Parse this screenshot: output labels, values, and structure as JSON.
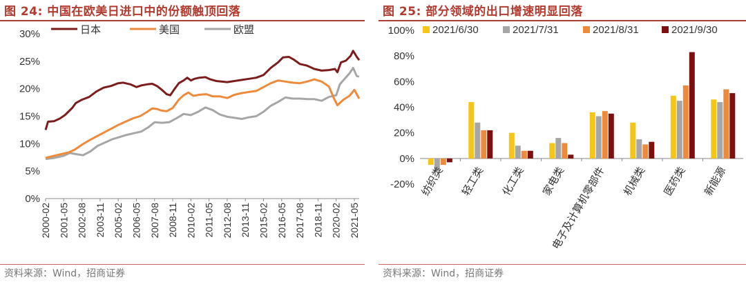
{
  "left": {
    "title": "图 24:  中国在欧美日进口中的份额触顶回落",
    "source": "资料来源：Wind，招商证券"
  },
  "right": {
    "title": "图 25:  部分领域的出口增速明显回落",
    "source": "资料来源：Wind，招商证券"
  },
  "colors": {
    "title_red": "#b23a2e",
    "japan": "#7b1d1d",
    "usa": "#ee8a3c",
    "eu": "#a6a6a6",
    "bar_jun": "#f5c518",
    "bar_jul": "#a6a6a6",
    "bar_aug": "#ee8a3c",
    "bar_sep": "#7b1010"
  },
  "chart_data": [
    {
      "type": "line",
      "title": "",
      "xlabel": "",
      "ylabel": "",
      "ylim": [
        0,
        30
      ],
      "y_ticks": [
        "0%",
        "5%",
        "10%",
        "15%",
        "20%",
        "25%",
        "30%"
      ],
      "x_ticks": [
        "2000-02",
        "2001-05",
        "2002-08",
        "2003-11",
        "2005-02",
        "2006-05",
        "2007-08",
        "2008-11",
        "2010-02",
        "2011-05",
        "2012-08",
        "2013-11",
        "2015-02",
        "2016-05",
        "2017-08",
        "2018-11",
        "2020-02",
        "2021-05"
      ],
      "x_start": "2000-02",
      "x_end": "2021-09",
      "legend_position": "top-left",
      "grid": false,
      "series": [
        {
          "name": "日本",
          "color_key": "japan",
          "points": [
            [
              "2000-02",
              12.5
            ],
            [
              "2000-04",
              14.0
            ],
            [
              "2000-09",
              14.1
            ],
            [
              "2001-02",
              14.6
            ],
            [
              "2001-06",
              15.2
            ],
            [
              "2001-12",
              16.5
            ],
            [
              "2002-03",
              17.4
            ],
            [
              "2002-08",
              18.0
            ],
            [
              "2003-02",
              18.5
            ],
            [
              "2003-08",
              19.5
            ],
            [
              "2004-02",
              20.2
            ],
            [
              "2004-08",
              20.5
            ],
            [
              "2005-02",
              21.0
            ],
            [
              "2005-06",
              21.1
            ],
            [
              "2005-12",
              20.8
            ],
            [
              "2006-05",
              20.3
            ],
            [
              "2006-09",
              20.6
            ],
            [
              "2007-02",
              20.8
            ],
            [
              "2007-06",
              20.9
            ],
            [
              "2007-10",
              20.5
            ],
            [
              "2008-02",
              19.8
            ],
            [
              "2008-06",
              19.0
            ],
            [
              "2008-09",
              18.8
            ],
            [
              "2008-12",
              19.8
            ],
            [
              "2009-04",
              21.0
            ],
            [
              "2009-08",
              21.5
            ],
            [
              "2009-11",
              22.0
            ],
            [
              "2010-02",
              21.5
            ],
            [
              "2010-05",
              21.8
            ],
            [
              "2010-09",
              22.0
            ],
            [
              "2011-02",
              22.1
            ],
            [
              "2011-06",
              21.7
            ],
            [
              "2011-11",
              21.4
            ],
            [
              "2012-03",
              21.3
            ],
            [
              "2012-08",
              21.2
            ],
            [
              "2013-02",
              21.4
            ],
            [
              "2013-08",
              21.6
            ],
            [
              "2014-02",
              21.8
            ],
            [
              "2014-08",
              22.0
            ],
            [
              "2015-02",
              22.5
            ],
            [
              "2015-08",
              23.8
            ],
            [
              "2016-02",
              24.8
            ],
            [
              "2016-06",
              25.7
            ],
            [
              "2016-11",
              25.8
            ],
            [
              "2017-03",
              25.3
            ],
            [
              "2017-08",
              24.5
            ],
            [
              "2018-02",
              24.2
            ],
            [
              "2018-08",
              23.6
            ],
            [
              "2019-02",
              23.3
            ],
            [
              "2019-08",
              23.4
            ],
            [
              "2020-01",
              23.6
            ],
            [
              "2020-03",
              23.0
            ],
            [
              "2020-06",
              24.8
            ],
            [
              "2020-10",
              25.1
            ],
            [
              "2021-02",
              26.0
            ],
            [
              "2021-04",
              26.9
            ],
            [
              "2021-07",
              25.8
            ],
            [
              "2021-09",
              25.2
            ]
          ]
        },
        {
          "name": "美国",
          "color_key": "usa",
          "points": [
            [
              "2000-02",
              7.4
            ],
            [
              "2000-09",
              7.8
            ],
            [
              "2001-03",
              8.1
            ],
            [
              "2001-09",
              8.4
            ],
            [
              "2002-02",
              8.9
            ],
            [
              "2002-08",
              9.8
            ],
            [
              "2003-02",
              10.6
            ],
            [
              "2003-08",
              11.3
            ],
            [
              "2004-02",
              12.0
            ],
            [
              "2004-08",
              12.7
            ],
            [
              "2005-02",
              13.4
            ],
            [
              "2005-08",
              14.0
            ],
            [
              "2006-02",
              14.6
            ],
            [
              "2006-08",
              15.0
            ],
            [
              "2007-02",
              15.8
            ],
            [
              "2007-06",
              16.4
            ],
            [
              "2007-10",
              16.3
            ],
            [
              "2008-02",
              16.0
            ],
            [
              "2008-06",
              15.9
            ],
            [
              "2008-11",
              16.5
            ],
            [
              "2009-04",
              18.0
            ],
            [
              "2009-08",
              18.8
            ],
            [
              "2009-12",
              19.3
            ],
            [
              "2010-04",
              18.7
            ],
            [
              "2010-09",
              18.9
            ],
            [
              "2011-03",
              19.0
            ],
            [
              "2011-08",
              18.6
            ],
            [
              "2012-02",
              18.6
            ],
            [
              "2012-08",
              18.3
            ],
            [
              "2013-02",
              18.9
            ],
            [
              "2013-08",
              19.2
            ],
            [
              "2014-02",
              19.4
            ],
            [
              "2014-08",
              19.6
            ],
            [
              "2015-02",
              20.3
            ],
            [
              "2015-08",
              21.0
            ],
            [
              "2016-02",
              21.5
            ],
            [
              "2016-08",
              21.3
            ],
            [
              "2017-02",
              21.1
            ],
            [
              "2017-08",
              21.0
            ],
            [
              "2018-02",
              21.3
            ],
            [
              "2018-08",
              21.7
            ],
            [
              "2019-02",
              21.3
            ],
            [
              "2019-08",
              20.4
            ],
            [
              "2019-12",
              18.3
            ],
            [
              "2020-03",
              17.0
            ],
            [
              "2020-08",
              18.0
            ],
            [
              "2021-01",
              18.7
            ],
            [
              "2021-05",
              19.8
            ],
            [
              "2021-09",
              18.2
            ]
          ]
        },
        {
          "name": "欧盟",
          "color_key": "eu",
          "points": [
            [
              "2000-02",
              7.2
            ],
            [
              "2000-09",
              7.4
            ],
            [
              "2001-05",
              7.8
            ],
            [
              "2001-10",
              8.3
            ],
            [
              "2002-03",
              8.1
            ],
            [
              "2002-09",
              7.9
            ],
            [
              "2003-03",
              8.6
            ],
            [
              "2003-09",
              9.6
            ],
            [
              "2004-03",
              10.2
            ],
            [
              "2004-09",
              10.8
            ],
            [
              "2005-03",
              11.2
            ],
            [
              "2005-09",
              11.6
            ],
            [
              "2006-03",
              11.9
            ],
            [
              "2006-09",
              12.2
            ],
            [
              "2007-03",
              13.0
            ],
            [
              "2007-08",
              13.9
            ],
            [
              "2008-02",
              13.8
            ],
            [
              "2008-08",
              13.9
            ],
            [
              "2009-02",
              14.6
            ],
            [
              "2009-08",
              15.4
            ],
            [
              "2010-02",
              15.2
            ],
            [
              "2010-08",
              15.8
            ],
            [
              "2011-02",
              16.6
            ],
            [
              "2011-08",
              16.1
            ],
            [
              "2012-02",
              15.3
            ],
            [
              "2012-08",
              14.9
            ],
            [
              "2013-02",
              14.7
            ],
            [
              "2013-08",
              14.5
            ],
            [
              "2014-02",
              14.8
            ],
            [
              "2014-08",
              15.0
            ],
            [
              "2015-02",
              15.8
            ],
            [
              "2015-08",
              16.9
            ],
            [
              "2016-02",
              17.6
            ],
            [
              "2016-08",
              18.4
            ],
            [
              "2017-02",
              18.2
            ],
            [
              "2017-08",
              18.2
            ],
            [
              "2018-02",
              18.1
            ],
            [
              "2018-08",
              18.1
            ],
            [
              "2019-02",
              17.8
            ],
            [
              "2019-08",
              18.5
            ],
            [
              "2020-02",
              18.8
            ],
            [
              "2020-05",
              20.8
            ],
            [
              "2020-09",
              21.8
            ],
            [
              "2021-01",
              22.8
            ],
            [
              "2021-04",
              23.8
            ],
            [
              "2021-07",
              22.3
            ],
            [
              "2021-09",
              22.2
            ]
          ]
        }
      ]
    },
    {
      "type": "bar",
      "title": "",
      "xlabel": "",
      "ylabel": "",
      "ylim": [
        -20,
        100
      ],
      "y_ticks": [
        "-20%",
        "0%",
        "20%",
        "40%",
        "60%",
        "80%",
        "100%"
      ],
      "legend_position": "top",
      "grid": false,
      "categories": [
        "纺织类",
        "轻工类",
        "化工类",
        "家电类",
        "电子及计算机零部件",
        "机械类",
        "医药类",
        "新能源"
      ],
      "series": [
        {
          "name": "2021/6/30",
          "color_key": "bar_jun",
          "values": [
            -5,
            44,
            20,
            12,
            36,
            28,
            49,
            46
          ]
        },
        {
          "name": "2021/7/31",
          "color_key": "bar_jul",
          "values": [
            -10,
            28,
            10,
            16,
            33,
            15,
            45,
            44
          ]
        },
        {
          "name": "2021/8/31",
          "color_key": "bar_aug",
          "values": [
            -5,
            22,
            6,
            12,
            37,
            11,
            57,
            54
          ]
        },
        {
          "name": "2021/9/30",
          "color_key": "bar_sep",
          "values": [
            -3,
            22,
            6,
            3,
            35,
            13,
            83,
            51
          ]
        }
      ]
    }
  ]
}
